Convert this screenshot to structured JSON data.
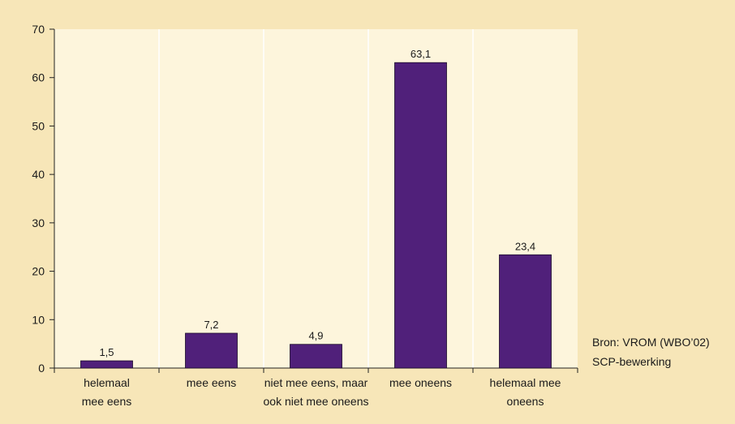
{
  "chart_data": {
    "type": "bar",
    "categories": [
      [
        "helemaal",
        "mee eens"
      ],
      [
        "mee eens"
      ],
      [
        "niet mee eens, maar",
        "ook niet mee oneens"
      ],
      [
        "mee oneens"
      ],
      [
        "helemaal mee",
        "oneens"
      ]
    ],
    "values": [
      1.5,
      7.2,
      4.9,
      63.1,
      23.4
    ],
    "value_labels": [
      "1,5",
      "7,2",
      "4,9",
      "63,1",
      "23,4"
    ],
    "title": "",
    "xlabel": "",
    "ylabel": "",
    "ylim": [
      0,
      70
    ],
    "yticks": [
      0,
      10,
      20,
      30,
      40,
      50,
      60,
      70
    ],
    "grid": "vertical",
    "colors": {
      "bar": "#50207a",
      "plot_background": "#fdf5dc",
      "page_background": "#f7e6b8",
      "grid": "#ffffff"
    }
  },
  "source": {
    "line1": "Bron: VROM (WBO’02)",
    "line2": "SCP-bewerking"
  }
}
